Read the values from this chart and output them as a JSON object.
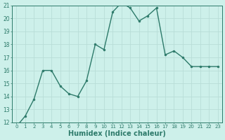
{
  "x": [
    0,
    1,
    2,
    3,
    4,
    5,
    6,
    7,
    8,
    9,
    10,
    11,
    12,
    13,
    14,
    15,
    16,
    17,
    18,
    19,
    20,
    21,
    22,
    23
  ],
  "y": [
    11.7,
    12.5,
    13.8,
    16.0,
    16.0,
    14.8,
    14.2,
    14.0,
    15.2,
    18.0,
    17.6,
    20.5,
    21.2,
    20.8,
    19.8,
    20.2,
    20.8,
    17.2,
    17.5,
    17.0,
    16.3,
    16.3,
    16.3,
    16.3
  ],
  "xlabel": "Humidex (Indice chaleur)",
  "ylim": [
    12,
    21
  ],
  "xlim": [
    -0.5,
    23.5
  ],
  "bg_color": "#cdf0ea",
  "line_color": "#2d7a6a",
  "grid_color": "#b8ddd7",
  "tick_color": "#2d7a6a",
  "label_color": "#2d7a6a",
  "yticks": [
    12,
    13,
    14,
    15,
    16,
    17,
    18,
    19,
    20,
    21
  ],
  "xticks": [
    0,
    1,
    2,
    3,
    4,
    5,
    6,
    7,
    8,
    9,
    10,
    11,
    12,
    13,
    14,
    15,
    16,
    17,
    18,
    19,
    20,
    21,
    22,
    23
  ],
  "xlabel_fontsize": 7.0,
  "ytick_fontsize": 5.5,
  "xtick_fontsize": 5.0,
  "linewidth": 1.0,
  "markersize": 2.0
}
